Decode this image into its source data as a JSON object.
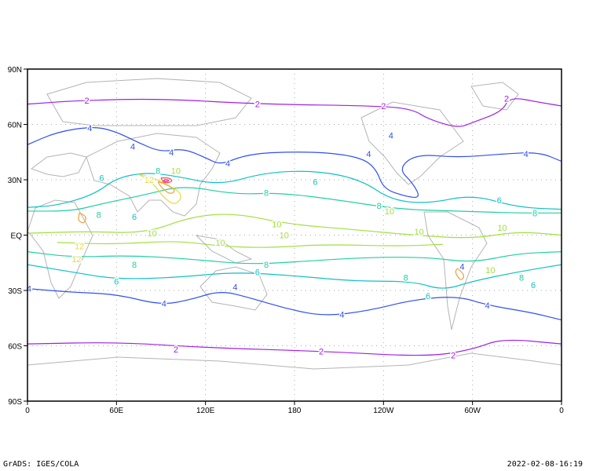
{
  "map": {
    "lon_ticks": [
      "0",
      "60E",
      "120E",
      "180",
      "120W",
      "60W",
      "0"
    ],
    "lat_ticks": [
      "90N",
      "60N",
      "30N",
      "EQ",
      "30S",
      "60S",
      "90S"
    ],
    "lon_range": [
      0,
      360
    ],
    "lat_range": [
      -90,
      90
    ],
    "grid": "dotted every 60 lon / 30 lat",
    "contour_colors": {
      "2": "#a020e8",
      "4": "#3050f0",
      "6": "#10c0c8",
      "8": "#20d0a0",
      "10": "#a0e040",
      "12": "#e8d840",
      "14": "#f0a030",
      "16": "#f05050",
      "18": "#e020a0"
    },
    "contours": [
      {
        "level": 2,
        "points": [
          [
            0,
            71
          ],
          [
            35,
            73
          ],
          [
            90,
            74
          ],
          [
            155,
            71
          ],
          [
            240,
            70
          ],
          [
            260,
            68
          ],
          [
            270,
            63
          ],
          [
            290,
            58
          ],
          [
            300,
            61
          ],
          [
            320,
            67
          ],
          [
            325,
            75
          ],
          [
            345,
            72
          ],
          [
            360,
            70
          ]
        ]
      },
      {
        "level": 2,
        "points": [
          [
            0,
            -59
          ],
          [
            60,
            -58
          ],
          [
            120,
            -61
          ],
          [
            200,
            -63
          ],
          [
            270,
            -66
          ],
          [
            300,
            -62
          ],
          [
            320,
            -56
          ],
          [
            360,
            -59
          ]
        ]
      },
      {
        "level": 4,
        "points": [
          [
            0,
            49
          ],
          [
            20,
            56
          ],
          [
            45,
            59
          ],
          [
            60,
            56
          ],
          [
            75,
            50
          ],
          [
            90,
            45
          ],
          [
            105,
            47
          ],
          [
            120,
            42
          ],
          [
            130,
            38
          ],
          [
            145,
            43
          ],
          [
            165,
            45
          ],
          [
            200,
            45
          ],
          [
            225,
            42
          ],
          [
            235,
            36
          ],
          [
            240,
            25
          ],
          [
            255,
            21
          ],
          [
            265,
            20
          ],
          [
            260,
            28
          ],
          [
            250,
            36
          ],
          [
            262,
            44
          ],
          [
            290,
            42
          ],
          [
            320,
            44
          ],
          [
            345,
            45
          ],
          [
            360,
            40
          ]
        ]
      },
      {
        "level": 4,
        "points": [
          [
            0,
            -29
          ],
          [
            30,
            -31
          ],
          [
            60,
            -32
          ],
          [
            90,
            -38
          ],
          [
            110,
            -35
          ],
          [
            130,
            -30
          ],
          [
            150,
            -34
          ],
          [
            175,
            -40
          ],
          [
            200,
            -44
          ],
          [
            230,
            -41
          ],
          [
            260,
            -35
          ],
          [
            290,
            -33
          ],
          [
            310,
            -38
          ],
          [
            340,
            -42
          ],
          [
            360,
            -46
          ]
        ]
      },
      {
        "level": 6,
        "points": [
          [
            0,
            15
          ],
          [
            20,
            16
          ],
          [
            45,
            22
          ],
          [
            60,
            31
          ],
          [
            80,
            34
          ],
          [
            100,
            32
          ],
          [
            130,
            27
          ],
          [
            160,
            34
          ],
          [
            195,
            35
          ],
          [
            225,
            30
          ],
          [
            245,
            19
          ],
          [
            270,
            17
          ],
          [
            300,
            22
          ],
          [
            330,
            15
          ],
          [
            360,
            14
          ]
        ]
      },
      {
        "level": 6,
        "points": [
          [
            0,
            -16
          ],
          [
            30,
            -20
          ],
          [
            60,
            -24
          ],
          [
            100,
            -23
          ],
          [
            140,
            -20
          ],
          [
            180,
            -22
          ],
          [
            220,
            -25
          ],
          [
            260,
            -25
          ],
          [
            280,
            -30
          ],
          [
            300,
            -25
          ],
          [
            330,
            -20
          ],
          [
            360,
            -16
          ]
        ]
      },
      {
        "level": 8,
        "points": [
          [
            0,
            13
          ],
          [
            30,
            13
          ],
          [
            50,
            17
          ],
          [
            80,
            22
          ],
          [
            105,
            27
          ],
          [
            140,
            22
          ],
          [
            170,
            23
          ],
          [
            210,
            19
          ],
          [
            250,
            14
          ],
          [
            290,
            13
          ],
          [
            330,
            12
          ],
          [
            360,
            12
          ]
        ]
      },
      {
        "level": 8,
        "points": [
          [
            0,
            -9
          ],
          [
            30,
            -12
          ],
          [
            70,
            -11
          ],
          [
            110,
            -13
          ],
          [
            150,
            -16
          ],
          [
            190,
            -14
          ],
          [
            230,
            -12
          ],
          [
            270,
            -12
          ],
          [
            300,
            -15
          ],
          [
            330,
            -10
          ],
          [
            360,
            -9
          ]
        ]
      },
      {
        "level": 10,
        "points": [
          [
            0,
            1
          ],
          [
            40,
            2
          ],
          [
            80,
            1
          ],
          [
            110,
            10
          ],
          [
            140,
            12
          ],
          [
            175,
            6
          ],
          [
            220,
            3
          ],
          [
            260,
            0
          ],
          [
            300,
            -2
          ],
          [
            330,
            2
          ],
          [
            360,
            0
          ]
        ]
      },
      {
        "level": 10,
        "points": [
          [
            20,
            -4
          ],
          [
            60,
            -5
          ],
          [
            100,
            -3
          ],
          [
            130,
            -6
          ],
          [
            160,
            -7
          ],
          [
            200,
            -5
          ],
          [
            250,
            -6
          ],
          [
            280,
            -5
          ]
        ]
      },
      {
        "level": 12,
        "points": [
          [
            75,
            33
          ],
          [
            85,
            31
          ],
          [
            95,
            27
          ],
          [
            105,
            22
          ],
          [
            100,
            16
          ],
          [
            92,
            20
          ],
          [
            85,
            28
          ],
          [
            75,
            33
          ]
        ]
      },
      {
        "level": 14,
        "points": [
          [
            88,
            29
          ],
          [
            95,
            27
          ],
          [
            100,
            24
          ],
          [
            96,
            22
          ],
          [
            90,
            26
          ],
          [
            88,
            29
          ]
        ]
      },
      {
        "level": 16,
        "points": [
          [
            90,
            31
          ],
          [
            96,
            31
          ],
          [
            98,
            29
          ],
          [
            92,
            28
          ],
          [
            90,
            31
          ]
        ]
      },
      {
        "level": 18,
        "points": [
          [
            92,
            30
          ],
          [
            95,
            30
          ],
          [
            95,
            29
          ],
          [
            92,
            29
          ],
          [
            92,
            30
          ]
        ]
      },
      {
        "level": 14,
        "points": [
          [
            35,
            12
          ],
          [
            40,
            10
          ],
          [
            38,
            6
          ],
          [
            34,
            8
          ],
          [
            35,
            12
          ]
        ]
      },
      {
        "level": 14,
        "points": [
          [
            290,
            -18
          ],
          [
            295,
            -22
          ],
          [
            292,
            -25
          ],
          [
            288,
            -20
          ],
          [
            290,
            -18
          ]
        ]
      }
    ],
    "contour_labels": [
      {
        "text": "2",
        "lon": 40,
        "lat": 73,
        "level": 2
      },
      {
        "text": "2",
        "lon": 155,
        "lat": 71,
        "level": 2
      },
      {
        "text": "2",
        "lon": 240,
        "lat": 70,
        "level": 2
      },
      {
        "text": "2",
        "lon": 323,
        "lat": 74,
        "level": 2
      },
      {
        "text": "2",
        "lon": 100,
        "lat": -62,
        "level": 2
      },
      {
        "text": "2",
        "lon": 198,
        "lat": -63,
        "level": 2
      },
      {
        "text": "2",
        "lon": 287,
        "lat": -65,
        "level": 2
      },
      {
        "text": "4",
        "lon": 42,
        "lat": 58,
        "level": 4
      },
      {
        "text": "4",
        "lon": 71,
        "lat": 48,
        "level": 4
      },
      {
        "text": "4",
        "lon": 97,
        "lat": 45,
        "level": 4
      },
      {
        "text": "4",
        "lon": 135,
        "lat": 39,
        "level": 4
      },
      {
        "text": "4",
        "lon": 230,
        "lat": 44,
        "level": 4
      },
      {
        "text": "4",
        "lon": 245,
        "lat": 54,
        "level": 4
      },
      {
        "text": "4",
        "lon": 336,
        "lat": 44,
        "level": 4
      },
      {
        "text": "4",
        "lon": 1,
        "lat": -29,
        "level": 4
      },
      {
        "text": "4",
        "lon": 92,
        "lat": -37,
        "level": 4
      },
      {
        "text": "4",
        "lon": 140,
        "lat": -28,
        "level": 4
      },
      {
        "text": "4",
        "lon": 212,
        "lat": -43,
        "level": 4
      },
      {
        "text": "4",
        "lon": 293,
        "lat": -17,
        "level": 4
      },
      {
        "text": "4",
        "lon": 310,
        "lat": -38,
        "level": 4
      },
      {
        "text": "6",
        "lon": 50,
        "lat": 31,
        "level": 6
      },
      {
        "text": "6",
        "lon": 72,
        "lat": 10,
        "level": 6
      },
      {
        "text": "6",
        "lon": 194,
        "lat": 29,
        "level": 6
      },
      {
        "text": "6",
        "lon": 318,
        "lat": 19,
        "level": 6
      },
      {
        "text": "6",
        "lon": 60,
        "lat": -25,
        "level": 6
      },
      {
        "text": "6",
        "lon": 155,
        "lat": -20,
        "level": 6
      },
      {
        "text": "6",
        "lon": 270,
        "lat": -33,
        "level": 6
      },
      {
        "text": "6",
        "lon": 341,
        "lat": -27,
        "level": 6
      },
      {
        "text": "8",
        "lon": 48,
        "lat": 11,
        "level": 8
      },
      {
        "text": "8",
        "lon": 88,
        "lat": 35,
        "level": 8
      },
      {
        "text": "8",
        "lon": 161,
        "lat": 23,
        "level": 8
      },
      {
        "text": "8",
        "lon": 237,
        "lat": 16,
        "level": 8
      },
      {
        "text": "8",
        "lon": 342,
        "lat": 12,
        "level": 8
      },
      {
        "text": "8",
        "lon": 72,
        "lat": -16,
        "level": 8
      },
      {
        "text": "8",
        "lon": 161,
        "lat": -16,
        "level": 8
      },
      {
        "text": "8",
        "lon": 255,
        "lat": -23,
        "level": 8
      },
      {
        "text": "8",
        "lon": 333,
        "lat": -23,
        "level": 8
      },
      {
        "text": "10",
        "lon": 100,
        "lat": 35,
        "level": 10
      },
      {
        "text": "10",
        "lon": 84,
        "lat": 1,
        "level": 10
      },
      {
        "text": "10",
        "lon": 168,
        "lat": 6,
        "level": 10
      },
      {
        "text": "10",
        "lon": 173,
        "lat": 0,
        "level": 10
      },
      {
        "text": "10",
        "lon": 244,
        "lat": 13,
        "level": 10
      },
      {
        "text": "10",
        "lon": 264,
        "lat": 2,
        "level": 10
      },
      {
        "text": "10",
        "lon": 320,
        "lat": 4,
        "level": 10
      },
      {
        "text": "10",
        "lon": 130,
        "lat": -4,
        "level": 10
      },
      {
        "text": "10",
        "lon": 312,
        "lat": -19,
        "level": 10
      },
      {
        "text": "12",
        "lon": 82,
        "lat": 30,
        "level": 12
      },
      {
        "text": "12",
        "lon": 35,
        "lat": -6,
        "level": 12
      },
      {
        "text": "12",
        "lon": 33,
        "lat": -13,
        "level": 12
      }
    ]
  },
  "footer": {
    "left": "GrADS: IGES/COLA",
    "right": "2022-02-08-16:19"
  }
}
